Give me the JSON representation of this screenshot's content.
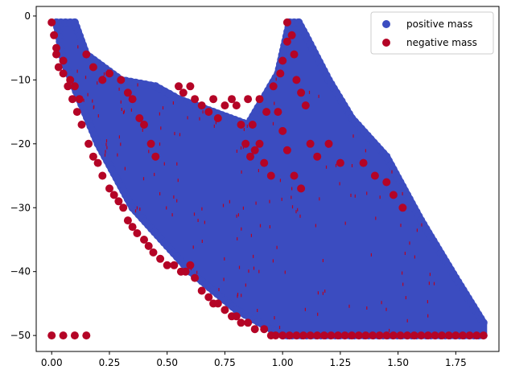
{
  "chart_data": {
    "type": "scatter",
    "title": "",
    "xlabel": "",
    "ylabel": "",
    "xlim": [
      -0.067,
      1.937
    ],
    "ylim": [
      -52.5,
      1.5
    ],
    "x_ticks": [
      0.0,
      0.25,
      0.5,
      0.75,
      1.0,
      1.25,
      1.5,
      1.75
    ],
    "x_tick_labels": [
      "0.00",
      "0.25",
      "0.50",
      "0.75",
      "1.00",
      "1.25",
      "1.50",
      "1.75"
    ],
    "y_ticks": [
      0,
      -10,
      -20,
      -30,
      -40,
      -50
    ],
    "y_tick_labels": [
      "0",
      "−10",
      "−20",
      "−30",
      "−40",
      "−50"
    ],
    "grid": false,
    "legend_position": "top-right",
    "series": [
      {
        "name": "positive mass",
        "color": "#3b4cc0",
        "region_description": "dense filled band between an upper and lower boundary",
        "upper_boundary": [
          [
            0.02,
            -1
          ],
          [
            0.1,
            -1
          ],
          [
            0.15,
            -6
          ],
          [
            0.3,
            -10
          ],
          [
            0.45,
            -11
          ],
          [
            0.55,
            -13
          ],
          [
            0.7,
            -15
          ],
          [
            0.85,
            -17
          ],
          [
            0.98,
            -9
          ],
          [
            1.03,
            -1
          ],
          [
            1.07,
            -1
          ],
          [
            1.1,
            -3
          ],
          [
            1.2,
            -10
          ],
          [
            1.3,
            -16
          ],
          [
            1.45,
            -22
          ],
          [
            1.6,
            -32
          ],
          [
            1.75,
            -41
          ],
          [
            1.87,
            -48
          ]
        ],
        "lower_boundary": [
          [
            0.02,
            -1
          ],
          [
            0.05,
            -7
          ],
          [
            0.2,
            -20
          ],
          [
            0.35,
            -30
          ],
          [
            0.5,
            -36
          ],
          [
            0.6,
            -40
          ],
          [
            0.7,
            -43
          ],
          [
            0.8,
            -46
          ],
          [
            0.95,
            -49
          ],
          [
            1.0,
            -50
          ],
          [
            1.87,
            -50
          ]
        ]
      },
      {
        "name": "negative mass",
        "color": "#b40426",
        "points": [
          [
            0.0,
            -1
          ],
          [
            0.01,
            -3
          ],
          [
            0.02,
            -6
          ],
          [
            0.03,
            -8
          ],
          [
            0.05,
            -9
          ],
          [
            0.07,
            -11
          ],
          [
            0.09,
            -13
          ],
          [
            0.11,
            -15
          ],
          [
            0.13,
            -17
          ],
          [
            0.16,
            -20
          ],
          [
            0.18,
            -22
          ],
          [
            0.2,
            -23
          ],
          [
            0.22,
            -25
          ],
          [
            0.25,
            -27
          ],
          [
            0.27,
            -28
          ],
          [
            0.29,
            -29
          ],
          [
            0.31,
            -30
          ],
          [
            0.33,
            -32
          ],
          [
            0.35,
            -33
          ],
          [
            0.37,
            -34
          ],
          [
            0.4,
            -35
          ],
          [
            0.42,
            -36
          ],
          [
            0.44,
            -37
          ],
          [
            0.47,
            -38
          ],
          [
            0.5,
            -39
          ],
          [
            0.53,
            -39
          ],
          [
            0.56,
            -40
          ],
          [
            0.58,
            -40
          ],
          [
            0.6,
            -39
          ],
          [
            0.62,
            -41
          ],
          [
            0.65,
            -43
          ],
          [
            0.68,
            -44
          ],
          [
            0.7,
            -45
          ],
          [
            0.72,
            -45
          ],
          [
            0.75,
            -46
          ],
          [
            0.78,
            -47
          ],
          [
            0.8,
            -47
          ],
          [
            0.82,
            -48
          ],
          [
            0.85,
            -48
          ],
          [
            0.88,
            -49
          ],
          [
            0.92,
            -49
          ],
          [
            0.95,
            -50
          ],
          [
            0.0,
            -50
          ],
          [
            0.05,
            -50
          ],
          [
            0.1,
            -50
          ],
          [
            0.15,
            -50
          ],
          [
            0.97,
            -50
          ],
          [
            1.0,
            -50
          ],
          [
            1.03,
            -50
          ],
          [
            1.06,
            -50
          ],
          [
            1.09,
            -50
          ],
          [
            1.12,
            -50
          ],
          [
            1.15,
            -50
          ],
          [
            1.18,
            -50
          ],
          [
            1.21,
            -50
          ],
          [
            1.24,
            -50
          ],
          [
            1.27,
            -50
          ],
          [
            1.3,
            -50
          ],
          [
            1.33,
            -50
          ],
          [
            1.36,
            -50
          ],
          [
            1.39,
            -50
          ],
          [
            1.42,
            -50
          ],
          [
            1.45,
            -50
          ],
          [
            1.48,
            -50
          ],
          [
            1.51,
            -50
          ],
          [
            1.54,
            -50
          ],
          [
            1.57,
            -50
          ],
          [
            1.6,
            -50
          ],
          [
            1.63,
            -50
          ],
          [
            1.66,
            -50
          ],
          [
            1.69,
            -50
          ],
          [
            1.72,
            -50
          ],
          [
            1.75,
            -50
          ],
          [
            1.78,
            -50
          ],
          [
            1.81,
            -50
          ],
          [
            1.84,
            -50
          ],
          [
            1.87,
            -50
          ],
          [
            0.02,
            -5
          ],
          [
            0.05,
            -7
          ],
          [
            0.08,
            -10
          ],
          [
            0.1,
            -11
          ],
          [
            0.12,
            -13
          ],
          [
            0.15,
            -6
          ],
          [
            0.18,
            -8
          ],
          [
            0.22,
            -10
          ],
          [
            0.25,
            -9
          ],
          [
            0.3,
            -10
          ],
          [
            0.33,
            -12
          ],
          [
            0.35,
            -13
          ],
          [
            0.38,
            -16
          ],
          [
            0.4,
            -17
          ],
          [
            0.43,
            -20
          ],
          [
            0.45,
            -22
          ],
          [
            0.55,
            -11
          ],
          [
            0.57,
            -12
          ],
          [
            0.6,
            -11
          ],
          [
            0.62,
            -13
          ],
          [
            0.65,
            -14
          ],
          [
            0.68,
            -15
          ],
          [
            0.7,
            -13
          ],
          [
            0.72,
            -16
          ],
          [
            0.75,
            -14
          ],
          [
            0.78,
            -13
          ],
          [
            0.8,
            -14
          ],
          [
            0.82,
            -17
          ],
          [
            0.84,
            -20
          ],
          [
            0.86,
            -22
          ],
          [
            0.88,
            -21
          ],
          [
            0.9,
            -20
          ],
          [
            0.92,
            -23
          ],
          [
            0.95,
            -25
          ],
          [
            0.85,
            -13
          ],
          [
            0.87,
            -17
          ],
          [
            0.9,
            -13
          ],
          [
            0.93,
            -15
          ],
          [
            0.96,
            -11
          ],
          [
            0.99,
            -9
          ],
          [
            1.0,
            -7
          ],
          [
            1.02,
            -4
          ],
          [
            1.02,
            -1
          ],
          [
            1.04,
            -3
          ],
          [
            1.05,
            -6
          ],
          [
            1.06,
            -10
          ],
          [
            1.08,
            -12
          ],
          [
            1.1,
            -14
          ],
          [
            1.12,
            -20
          ],
          [
            1.15,
            -22
          ],
          [
            1.2,
            -20
          ],
          [
            1.25,
            -23
          ],
          [
            1.35,
            -23
          ],
          [
            1.4,
            -25
          ],
          [
            1.45,
            -26
          ],
          [
            1.48,
            -28
          ],
          [
            1.52,
            -30
          ],
          [
            0.98,
            -15
          ],
          [
            1.0,
            -18
          ],
          [
            1.02,
            -21
          ],
          [
            1.05,
            -25
          ],
          [
            1.08,
            -27
          ]
        ]
      }
    ]
  }
}
